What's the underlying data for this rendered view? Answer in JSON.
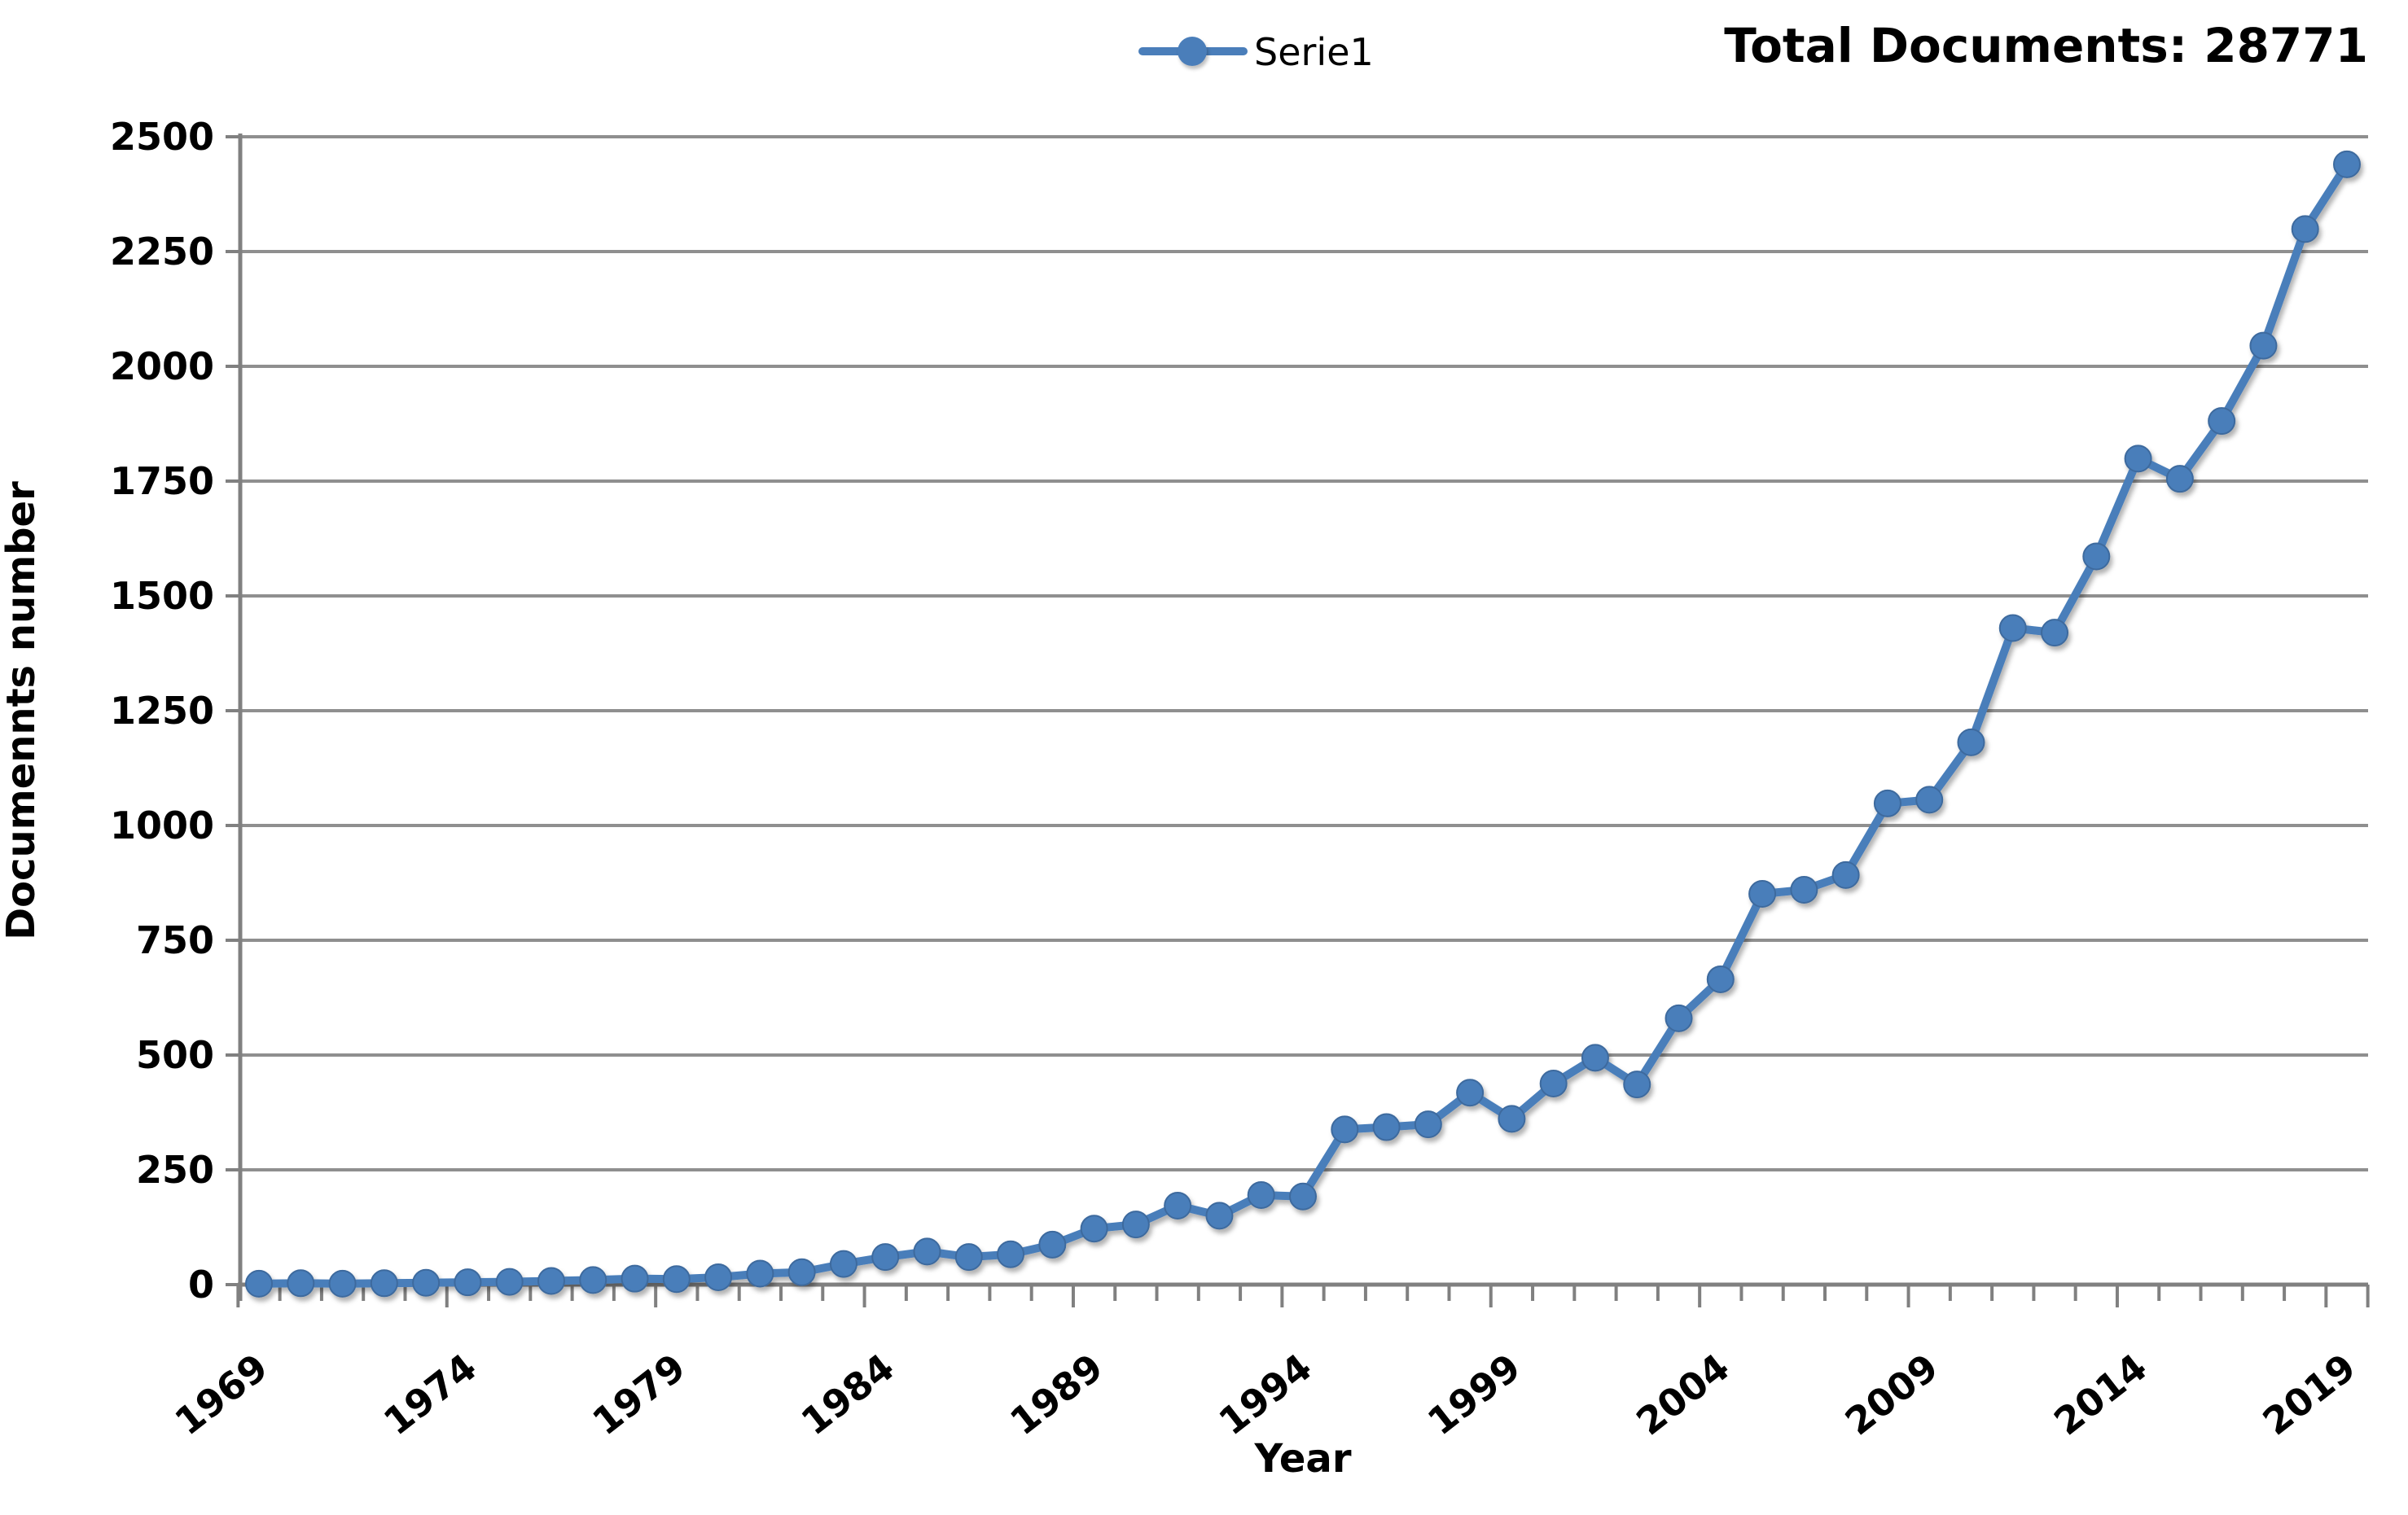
{
  "header": {
    "legend": {
      "series_label": "Serie1"
    },
    "total_text": "Total Documents: 28771"
  },
  "chart_data": {
    "type": "line",
    "title": "Total Documents: 28771",
    "total_documents": 28771,
    "xlabel": "Year",
    "ylabel": "Documennts number",
    "legend_entries": [
      "Serie1"
    ],
    "legend_position": "top-center",
    "grid": "horizontal-only",
    "ylim": [
      0,
      2500
    ],
    "y_ticks": [
      0,
      250,
      500,
      750,
      1000,
      1250,
      1500,
      1750,
      2000,
      2250,
      2500
    ],
    "x_tick_labels": [
      "1969",
      "1974",
      "1979",
      "1984",
      "1989",
      "1994",
      "1999",
      "2004",
      "2009",
      "2014",
      "2019"
    ],
    "x": [
      1969,
      1970,
      1971,
      1972,
      1973,
      1974,
      1975,
      1976,
      1977,
      1978,
      1979,
      1980,
      1981,
      1982,
      1983,
      1984,
      1985,
      1986,
      1987,
      1988,
      1989,
      1990,
      1991,
      1992,
      1993,
      1994,
      1995,
      1996,
      1997,
      1998,
      1999,
      2000,
      2001,
      2002,
      2003,
      2004,
      2005,
      2006,
      2007,
      2008,
      2009,
      2010,
      2011,
      2012,
      2013,
      2014,
      2015,
      2016,
      2017,
      2018,
      2019
    ],
    "series": [
      {
        "name": "Serie1",
        "values": [
          2,
          3,
          2,
          3,
          4,
          5,
          6,
          8,
          10,
          13,
          12,
          16,
          24,
          27,
          45,
          60,
          72,
          60,
          66,
          87,
          122,
          131,
          172,
          150,
          195,
          192,
          338,
          343,
          349,
          418,
          361,
          438,
          494,
          436,
          580,
          665,
          851,
          860,
          892,
          1048,
          1056,
          1181,
          1430,
          1420,
          1586,
          1799,
          1755,
          1881,
          2045,
          2299,
          2440
        ]
      }
    ],
    "colors": {
      "series": "#4a7eba",
      "series_edge": "#3e6a9e",
      "gridline": "#8f8f8f",
      "axis": "#808080",
      "text": "#000000"
    }
  }
}
